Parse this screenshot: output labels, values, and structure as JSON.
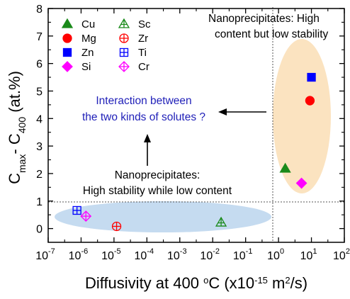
{
  "chart_data": {
    "type": "scatter",
    "x_scale": "log",
    "xlim": [
      1e-07,
      100
    ],
    "ylim": [
      -0.5,
      8
    ],
    "x_ticks": [
      {
        "base": "10",
        "exp": "-7",
        "value": 1e-07
      },
      {
        "base": "10",
        "exp": "-6",
        "value": 1e-06
      },
      {
        "base": "10",
        "exp": "-5",
        "value": 1e-05
      },
      {
        "base": "10",
        "exp": "-4",
        "value": 0.0001
      },
      {
        "base": "10",
        "exp": "-3",
        "value": 0.001
      },
      {
        "base": "10",
        "exp": "-2",
        "value": 0.01
      },
      {
        "base": "10",
        "exp": "-1",
        "value": 0.1
      },
      {
        "base": "10",
        "exp": "0",
        "value": 1
      },
      {
        "base": "10",
        "exp": "1",
        "value": 10
      },
      {
        "base": "10",
        "exp": "2",
        "value": 100
      }
    ],
    "y_ticks": [
      0,
      1,
      2,
      3,
      4,
      5,
      6,
      7,
      8
    ],
    "xlabel": {
      "main": "Diffusivity at 400 ",
      "deg": "o",
      "unit1": "C (x10",
      "exp1": "-15",
      "unit2": " m",
      "exp2": "2",
      "unit3": "/s)"
    },
    "ylabel": {
      "c1": "C",
      "sub1": "max",
      "mid": "- C",
      "sub2": "400",
      "tail": " (at.%)"
    },
    "legend_position": "top-left",
    "series": [
      {
        "name": "Cu",
        "marker": "triangle",
        "filled": true,
        "color": "#1a8a1a",
        "x": 1.6,
        "y": 2.18
      },
      {
        "name": "Mg",
        "marker": "circle",
        "filled": true,
        "color": "#ff0000",
        "x": 9.0,
        "y": 4.65
      },
      {
        "name": "Zn",
        "marker": "square",
        "filled": true,
        "color": "#0000ff",
        "x": 10.0,
        "y": 5.5
      },
      {
        "name": "Si",
        "marker": "diamond",
        "filled": true,
        "color": "#ff00ff",
        "x": 5.0,
        "y": 1.65
      },
      {
        "name": "Sc",
        "marker": "triangle",
        "filled": false,
        "color": "#1a8a1a",
        "x": 0.018,
        "y": 0.22
      },
      {
        "name": "Zr",
        "marker": "circle",
        "filled": false,
        "color": "#ff0000",
        "x": 1.2e-05,
        "y": 0.08
      },
      {
        "name": "Ti",
        "marker": "square",
        "filled": false,
        "color": "#0000ff",
        "x": 7.5e-07,
        "y": 0.66
      },
      {
        "name": "Cr",
        "marker": "diamond",
        "filled": false,
        "color": "#ff00ff",
        "x": 1.4e-06,
        "y": 0.45
      }
    ],
    "reference_lines": {
      "vertical_x": 1,
      "horizontal_y": 1
    },
    "regions": {
      "high_content": {
        "x_center": 8,
        "y_center": 4.15,
        "color": "#fbe3c0"
      },
      "high_stability": {
        "x_center": 0.0005,
        "y_center": 0.35,
        "color": "#c5dbf0"
      }
    },
    "annotations": {
      "high_content_line1": "Nanoprecipitates: High",
      "high_content_line2": "content but low stability",
      "high_stability_line1": "Nanoprecipitates:",
      "high_stability_line2": "High stability while low content",
      "interaction_line1": "Interaction between",
      "interaction_line2": "the two kinds of solutes ?"
    },
    "colors": {
      "annotation_blue": "#1f1fb8"
    }
  }
}
